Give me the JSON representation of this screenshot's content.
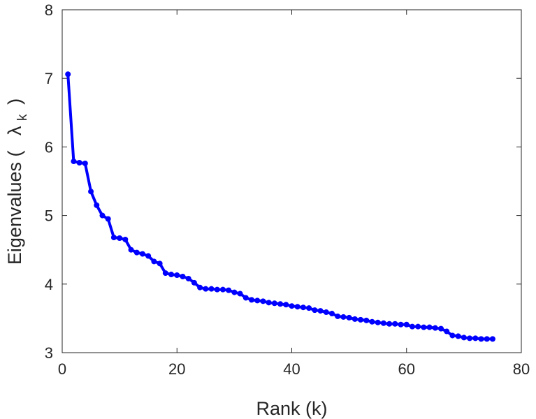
{
  "chart_data": {
    "type": "line",
    "title": "",
    "xlabel": "Rank (k)",
    "ylabel": {
      "text": "Eigenvalues (",
      "symbol": "λ",
      "subscript": "k",
      "close": ")"
    },
    "xlim": [
      0,
      80
    ],
    "ylim": [
      3,
      8
    ],
    "xticks": [
      "0",
      "20",
      "40",
      "60",
      "80"
    ],
    "yticks": [
      "3",
      "4",
      "5",
      "6",
      "7",
      "8"
    ],
    "grid": false,
    "legend": "none",
    "series_color": "#0000ff",
    "series": [
      {
        "x": [
          1,
          2,
          3,
          4,
          5,
          6,
          7,
          8,
          9,
          10,
          11,
          12,
          13,
          14,
          15,
          16,
          17,
          18,
          19,
          20,
          21,
          22,
          23,
          24,
          25,
          26,
          27,
          28,
          29,
          30,
          31,
          32,
          33,
          34,
          35,
          36,
          37,
          38,
          39,
          40,
          41,
          42,
          43,
          44,
          45,
          46,
          47,
          48,
          49,
          50,
          51,
          52,
          53,
          54,
          55,
          56,
          57,
          58,
          59,
          60,
          61,
          62,
          63,
          64,
          65,
          66,
          67,
          68,
          69,
          70,
          71,
          72,
          73,
          74,
          75
        ],
        "values": [
          7.06,
          5.79,
          5.77,
          5.76,
          5.35,
          5.15,
          5.0,
          4.95,
          4.68,
          4.67,
          4.65,
          4.5,
          4.46,
          4.44,
          4.41,
          4.33,
          4.3,
          4.16,
          4.14,
          4.13,
          4.11,
          4.08,
          4.02,
          3.95,
          3.93,
          3.93,
          3.92,
          3.92,
          3.91,
          3.88,
          3.86,
          3.8,
          3.77,
          3.76,
          3.75,
          3.73,
          3.72,
          3.71,
          3.7,
          3.68,
          3.67,
          3.66,
          3.65,
          3.62,
          3.61,
          3.59,
          3.57,
          3.53,
          3.52,
          3.51,
          3.49,
          3.48,
          3.47,
          3.45,
          3.44,
          3.43,
          3.42,
          3.42,
          3.41,
          3.41,
          3.38,
          3.38,
          3.37,
          3.37,
          3.36,
          3.35,
          3.31,
          3.25,
          3.24,
          3.22,
          3.21,
          3.21,
          3.2,
          3.2,
          3.2
        ]
      }
    ]
  }
}
